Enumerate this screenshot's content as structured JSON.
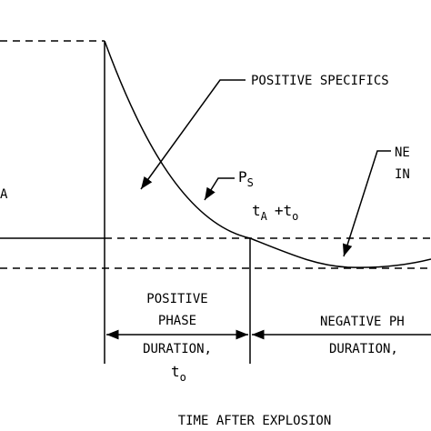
{
  "annotations": {
    "positive_impulse": "POSITIVE SPECIFICS",
    "negative_impulse": [
      "NE",
      "IN"
    ],
    "left_label": "A",
    "pressure_label": {
      "main": "P",
      "sub": "S"
    },
    "time_label": {
      "t1": "t",
      "sub1": "A",
      "t2": "+t",
      "sub2": "o"
    }
  },
  "phases": [
    {
      "lines": [
        "POSITIVE",
        "PHASE",
        "DURATION,"
      ],
      "symbol": {
        "main": "t",
        "sub": "o"
      }
    },
    {
      "lines": [
        "NEGATIVE PH",
        "DURATION,"
      ]
    }
  ],
  "x_axis_label": "TIME AFTER EXPLOSION"
}
